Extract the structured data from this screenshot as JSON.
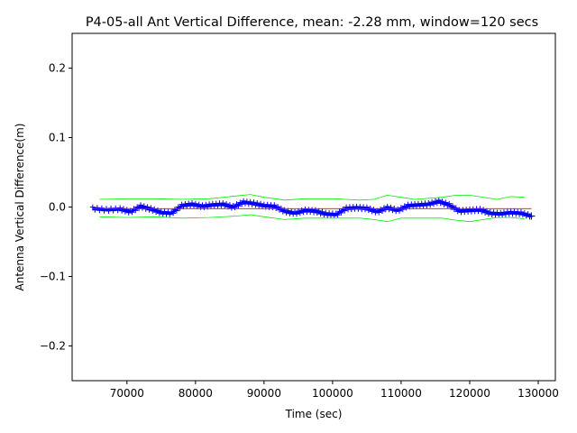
{
  "chart_data": {
    "type": "line",
    "title": "P4-05-all Ant Vertical Difference, mean: -2.28 mm, window=120 secs",
    "xlabel": "Time (sec)",
    "ylabel": "Antenna Vertical Difference(m)",
    "xlim": [
      62000,
      132500
    ],
    "ylim": [
      -0.25,
      0.25
    ],
    "xticks": [
      70000,
      80000,
      90000,
      100000,
      110000,
      120000,
      130000
    ],
    "xtick_labels": [
      "70000",
      "80000",
      "90000",
      "100000",
      "110000",
      "120000",
      "130000"
    ],
    "yticks": [
      0.2,
      0.1,
      0.0,
      -0.1,
      -0.2
    ],
    "ytick_labels": [
      "0.2",
      "0.1",
      "0.0",
      "−0.1",
      "−0.2"
    ],
    "grid": false,
    "series": [
      {
        "role": "data",
        "color": "#0000ff",
        "marker": "plus",
        "x": [
          65000,
          67000,
          69000,
          70500,
          72000,
          73500,
          75000,
          76500,
          78000,
          79500,
          81000,
          82500,
          84000,
          85500,
          87000,
          88500,
          90000,
          91500,
          93000,
          94500,
          96000,
          97500,
          99000,
          100500,
          102000,
          103500,
          105000,
          106500,
          108000,
          109500,
          111000,
          112500,
          114000,
          115500,
          117000,
          118500,
          120000,
          121500,
          123000,
          124500,
          126000,
          127500,
          129000
        ],
        "y": [
          -0.002,
          -0.004,
          -0.003,
          -0.007,
          0.001,
          -0.003,
          -0.008,
          -0.009,
          0.002,
          0.004,
          0.001,
          0.003,
          0.004,
          0.0,
          0.007,
          0.005,
          0.002,
          0.001,
          -0.006,
          -0.009,
          -0.005,
          -0.006,
          -0.01,
          -0.011,
          -0.002,
          -0.001,
          -0.002,
          -0.007,
          -0.001,
          -0.005,
          0.002,
          0.003,
          0.004,
          0.008,
          0.003,
          -0.006,
          -0.005,
          -0.004,
          -0.009,
          -0.01,
          -0.008,
          -0.009,
          -0.013
        ]
      },
      {
        "role": "mean",
        "color": "#ff0000",
        "x": [
          65000,
          129000
        ],
        "y": [
          -0.00228,
          -0.00228
        ]
      },
      {
        "role": "upper-band",
        "color": "#00ee00",
        "x": [
          66000,
          70000,
          74000,
          78000,
          82000,
          86000,
          88000,
          90000,
          93000,
          96000,
          100000,
          104000,
          106000,
          108000,
          110000,
          112000,
          116000,
          118000,
          120000,
          124000,
          126000,
          128000
        ],
        "y": [
          0.011,
          0.012,
          0.012,
          0.011,
          0.012,
          0.016,
          0.018,
          0.014,
          0.01,
          0.012,
          0.012,
          0.01,
          0.011,
          0.017,
          0.014,
          0.011,
          0.014,
          0.017,
          0.017,
          0.011,
          0.015,
          0.014
        ]
      },
      {
        "role": "lower-band",
        "color": "#00ee00",
        "x": [
          66000,
          70000,
          74000,
          78000,
          82000,
          86000,
          88000,
          90000,
          93000,
          96000,
          100000,
          104000,
          106000,
          108000,
          110000,
          112000,
          116000,
          118000,
          120000,
          124000,
          126000,
          128000
        ],
        "y": [
          -0.014,
          -0.015,
          -0.014,
          -0.016,
          -0.015,
          -0.013,
          -0.011,
          -0.014,
          -0.018,
          -0.016,
          -0.016,
          -0.016,
          -0.018,
          -0.021,
          -0.016,
          -0.016,
          -0.016,
          -0.019,
          -0.021,
          -0.015,
          -0.015,
          -0.017
        ]
      }
    ]
  }
}
